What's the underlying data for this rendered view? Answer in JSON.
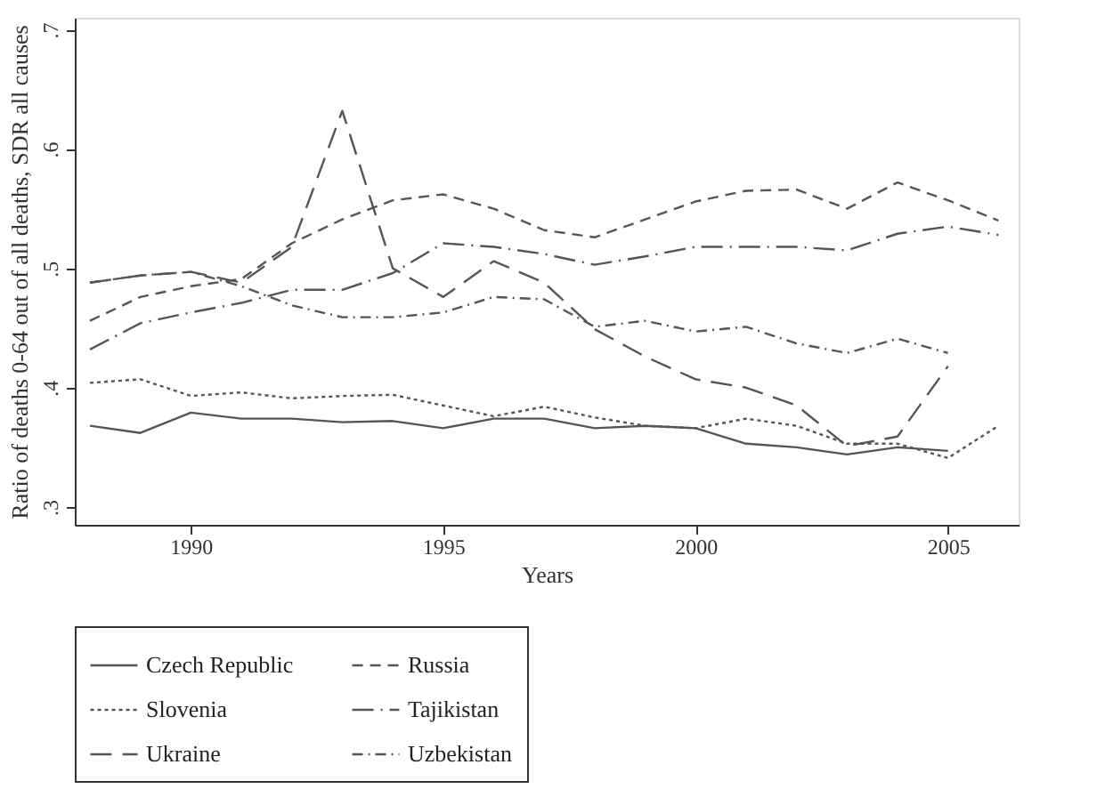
{
  "chart_data": {
    "type": "line",
    "xlabel": "Years",
    "ylabel": "Ratio of deaths 0-64 out of all deaths, SDR all causes",
    "xlim": [
      1987.7,
      2006.4
    ],
    "xticks": [
      1990,
      1995,
      2000,
      2005
    ],
    "ylim": [
      0.285,
      0.71
    ],
    "yticks": [
      {
        "value": 0.3,
        "label": ".3"
      },
      {
        "value": 0.4,
        "label": ".4"
      },
      {
        "value": 0.5,
        "label": ".5"
      },
      {
        "value": 0.6,
        "label": ".6"
      },
      {
        "value": 0.7,
        "label": ".7"
      }
    ],
    "grid": false,
    "legend": "bottom",
    "marker": "none",
    "series": [
      {
        "name": "Czech Republic",
        "color": "#555555",
        "line_style": "solid",
        "x": [
          1988,
          1989,
          1990,
          1991,
          1992,
          1993,
          1994,
          1995,
          1996,
          1997,
          1998,
          1999,
          2000,
          2001,
          2002,
          2003,
          2004,
          2005
        ],
        "values": [
          0.368,
          0.362,
          0.379,
          0.374,
          0.374,
          0.371,
          0.372,
          0.366,
          0.374,
          0.374,
          0.366,
          0.368,
          0.366,
          0.353,
          0.35,
          0.344,
          0.35,
          0.347
        ]
      },
      {
        "name": "Russia",
        "color": "#555555",
        "line_style": "dashed",
        "x": [
          1988,
          1989,
          1990,
          1991,
          1992,
          1993,
          1994,
          1995,
          1996,
          1997,
          1998,
          1999,
          2000,
          2001,
          2002,
          2003,
          2004,
          2005,
          2006
        ],
        "values": [
          0.456,
          0.476,
          0.485,
          0.491,
          0.521,
          0.541,
          0.557,
          0.562,
          0.55,
          0.532,
          0.526,
          0.541,
          0.556,
          0.565,
          0.566,
          0.55,
          0.572,
          0.557,
          0.54
        ]
      },
      {
        "name": "Slovenia",
        "color": "#555555",
        "line_style": "dotted",
        "x": [
          1988,
          1989,
          1990,
          1991,
          1992,
          1993,
          1994,
          1995,
          1996,
          1997,
          1998,
          1999,
          2000,
          2001,
          2002,
          2003,
          2004,
          2005,
          2006
        ],
        "values": [
          0.404,
          0.407,
          0.393,
          0.396,
          0.391,
          0.393,
          0.394,
          0.385,
          0.376,
          0.384,
          0.375,
          0.368,
          0.366,
          0.374,
          0.368,
          0.353,
          0.353,
          0.341,
          0.368
        ]
      },
      {
        "name": "Tajikistan",
        "color": "#555555",
        "line_style": "longdashdot",
        "x": [
          1988,
          1989,
          1990,
          1991,
          1992,
          1993,
          1994,
          1995,
          1996,
          1997,
          1998,
          1999,
          2000,
          2001,
          2002,
          2003,
          2004,
          2005,
          2006
        ],
        "values": [
          0.432,
          0.454,
          0.463,
          0.471,
          0.482,
          0.482,
          0.496,
          0.521,
          0.518,
          0.512,
          0.503,
          0.51,
          0.518,
          0.518,
          0.518,
          0.515,
          0.529,
          0.535,
          0.528
        ]
      },
      {
        "name": "Ukraine",
        "color": "#555555",
        "line_style": "longdash",
        "x": [
          1988,
          1989,
          1990,
          1991,
          1992,
          1993,
          1994,
          1995,
          1996,
          1997,
          1998,
          1999,
          2000,
          2001,
          2002,
          2003,
          2004,
          2005
        ],
        "values": [
          0.488,
          0.494,
          0.497,
          0.488,
          0.518,
          0.632,
          0.5,
          0.476,
          0.506,
          0.488,
          0.449,
          0.426,
          0.407,
          0.4,
          0.385,
          0.351,
          0.359,
          0.418
        ]
      },
      {
        "name": "Uzbekistan",
        "color": "#555555",
        "line_style": "dashdot",
        "x": [
          1988,
          1989,
          1990,
          1991,
          1992,
          1993,
          1994,
          1995,
          1996,
          1997,
          1998,
          1999,
          2000,
          2001,
          2002,
          2003,
          2004,
          2005
        ],
        "values": [
          0.488,
          0.494,
          0.497,
          0.485,
          0.469,
          0.459,
          0.459,
          0.463,
          0.476,
          0.474,
          0.451,
          0.456,
          0.447,
          0.451,
          0.437,
          0.429,
          0.441,
          0.429
        ]
      }
    ]
  }
}
